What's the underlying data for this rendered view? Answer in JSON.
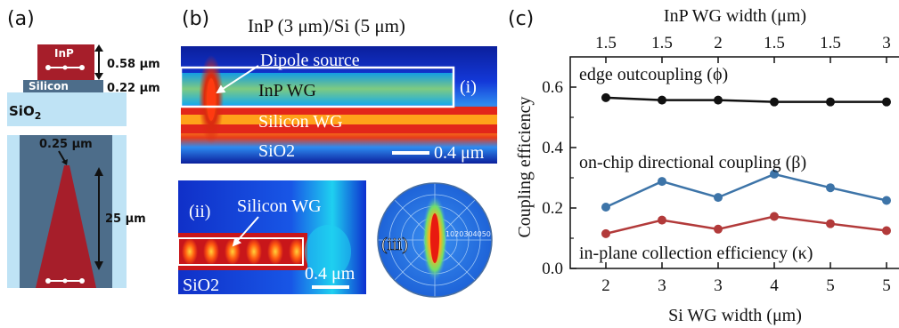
{
  "panel_a": {
    "label": "(a)",
    "inp_label": "InP",
    "silicon_label": "Silicon",
    "sio2_label": "SiO",
    "sio2_sub": "2",
    "inp_thickness": "0.58 μm",
    "si_thickness": "0.22 μm",
    "tip_width": "0.25 μm",
    "taper_length": "25 μm"
  },
  "panel_b": {
    "label": "(b)",
    "title": "InP (3 μm)/Si (5 μm)",
    "i": {
      "label": "(i)",
      "dipole": "Dipole source",
      "inp_wg": "InP WG",
      "si_wg": "Silicon WG",
      "sio2": "SiO2",
      "scale": "0.4 μm"
    },
    "ii": {
      "label": "(ii)",
      "si_wg": "Silicon WG",
      "sio2": "SiO2",
      "scale": "0.4 μm"
    },
    "iii": {
      "label": "(iii)",
      "ring_labels": "1020304050"
    }
  },
  "panel_c": {
    "label": "(c)",
    "chart_data": {
      "type": "line",
      "title": "",
      "top_xlabel": "InP WG width (μm)",
      "top_categories": [
        "1.5",
        "1.5",
        "2",
        "1.5",
        "1.5",
        "3"
      ],
      "xlabel": "Si WG width (μm)",
      "categories": [
        "2",
        "3",
        "3",
        "4",
        "5",
        "5"
      ],
      "ylabel": "Coupling efficiency",
      "ylim": [
        0.0,
        0.7
      ],
      "yticks": [
        "0.0",
        "0.2",
        "0.4",
        "0.6"
      ],
      "ytick_values": [
        0.0,
        0.2,
        0.4,
        0.6
      ],
      "grid": false,
      "series": [
        {
          "name": "edge outcoupling (ϕ)",
          "color": "#111111",
          "values": [
            0.565,
            0.557,
            0.557,
            0.551,
            0.551,
            0.551
          ]
        },
        {
          "name": "on-chip directional coupling (β)",
          "color": "#3d74a8",
          "values": [
            0.203,
            0.288,
            0.235,
            0.312,
            0.267,
            0.225
          ]
        },
        {
          "name": "in-plane collection efficiency (κ)",
          "color": "#b23a3a",
          "values": [
            0.115,
            0.16,
            0.13,
            0.172,
            0.148,
            0.125
          ]
        }
      ]
    }
  }
}
